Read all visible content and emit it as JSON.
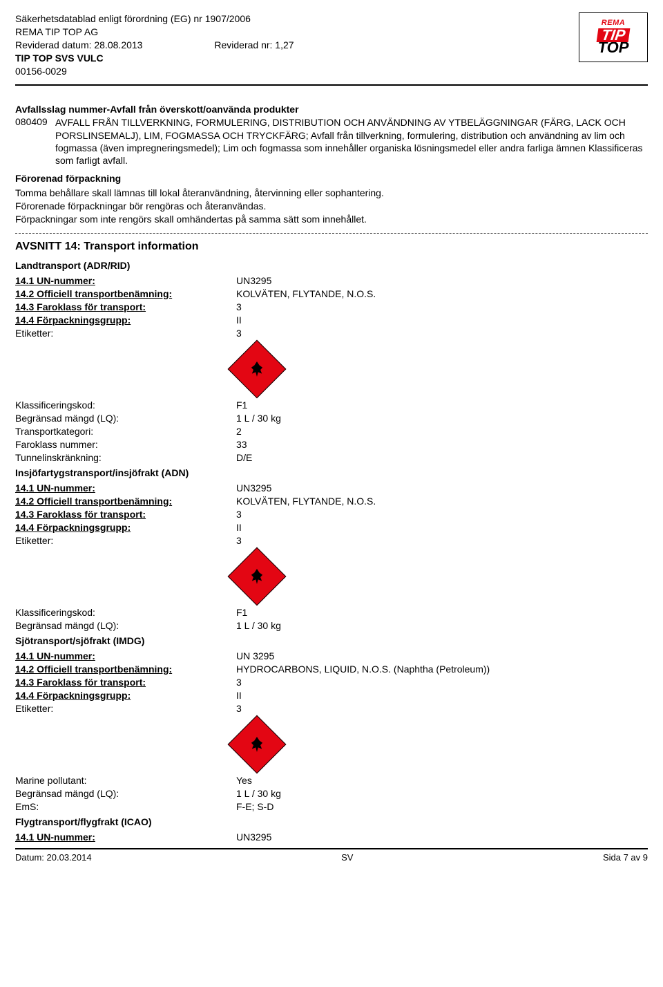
{
  "header": {
    "line1": "Säkerhetsdatablad enligt förordning (EG) nr 1907/2006",
    "line2": "REMA TIP TOP AG",
    "revised_date_label": "Reviderad datum: 28.08.2013",
    "revised_no_label": "Reviderad nr: 1,27",
    "product": "TIP TOP SVS VULC",
    "code": "00156-0029",
    "logo": {
      "rema": "REMA",
      "tip": "TIP",
      "top": "TOP"
    }
  },
  "waste_section": {
    "title": "Avfallsslag nummer-Avfall från överskott/oanvända produkter",
    "code": "080409",
    "text": "AVFALL FRÅN TILLVERKNING, FORMULERING, DISTRIBUTION OCH ANVÄNDNING AV YTBELÄGGNINGAR (FÄRG, LACK OCH PORSLINSEMALJ), LIM, FOGMASSA OCH TRYCKFÄRG; Avfall från tillverkning, formulering, distribution och användning av lim och fogmassa (även impregneringsmedel); Lim och fogmassa som innehåller organiska lösningsmedel eller andra farliga ämnen Klassificeras som farligt avfall."
  },
  "packaging": {
    "title": "Förorenad förpackning",
    "l1": "Tomma behållare skall lämnas till lokal återanvändning, återvinning eller sophantering.",
    "l2": "Förorenade förpackningar bör rengöras och återanvändas.",
    "l3": "Förpackningar som inte rengörs skall omhändertas på samma sätt som innehållet."
  },
  "section14_title": "AVSNITT 14: Transport information",
  "labels": {
    "un": "14.1 UN-nummer:",
    "off": "14.2 Officiell transportbenämning:",
    "faro": "14.3 Faroklass för transport:",
    "pack": "14.4 Förpackningsgrupp:",
    "etik": "Etiketter:",
    "klass": "Klassificeringskod:",
    "lq": "Begränsad mängd (LQ):",
    "transkat": "Transportkategori:",
    "faronum": "Faroklass nummer:",
    "tunnel": "Tunnelinskränkning:",
    "marine": "Marine pollutant:",
    "ems": "EmS:"
  },
  "adr": {
    "title": "Landtransport (ADR/RID)",
    "un": "UN3295",
    "off": "KOLVÄTEN, FLYTANDE, N.O.S.",
    "faro": "3",
    "pack": "II",
    "etik": "3",
    "klass": "F1",
    "lq": "1 L / 30 kg",
    "transkat": "2",
    "faronum": "33",
    "tunnel": "D/E"
  },
  "adn": {
    "title": "Insjöfartygstransport/insjöfrakt (ADN)",
    "un": "UN3295",
    "off": "KOLVÄTEN, FLYTANDE, N.O.S.",
    "faro": "3",
    "pack": "II",
    "etik": "3",
    "klass": "F1",
    "lq": "1 L / 30 kg"
  },
  "imdg": {
    "title": "Sjötransport/sjöfrakt (IMDG)",
    "un": "UN 3295",
    "off": "HYDROCARBONS, LIQUID, N.O.S. (Naphtha (Petroleum))",
    "faro": "3",
    "pack": "II",
    "etik": "3",
    "marine": "Yes",
    "lq": "1 L / 30 kg",
    "ems": "F-E; S-D"
  },
  "icao": {
    "title": "Flygtransport/flygfrakt (ICAO)",
    "un": "UN3295"
  },
  "footer": {
    "date": "Datum: 20.03.2014",
    "lang": "SV",
    "page": "Sida 7 av 9"
  }
}
